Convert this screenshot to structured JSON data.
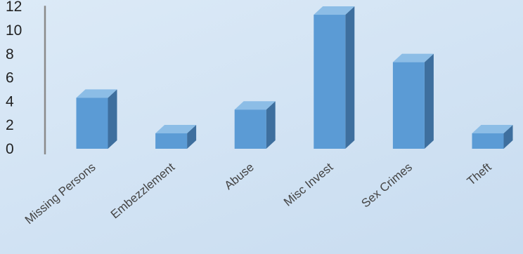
{
  "chart_data": {
    "type": "bar",
    "style": "3d-column",
    "categories": [
      "Missing Persons",
      "Embezzlement",
      "Abuse",
      "Misc Invest",
      "Sex Crimes",
      "Theft"
    ],
    "values": [
      4,
      1,
      3,
      11,
      7,
      1
    ],
    "yticks": [
      0,
      2,
      4,
      6,
      8,
      10,
      12
    ],
    "ylim": [
      0,
      12
    ],
    "grid": false,
    "legend": "none",
    "colors": {
      "bar_front": "#5b9bd5",
      "bar_top": "#8cbde6",
      "bar_side": "#3e6f9e",
      "axis": "#8a8a8a"
    }
  }
}
